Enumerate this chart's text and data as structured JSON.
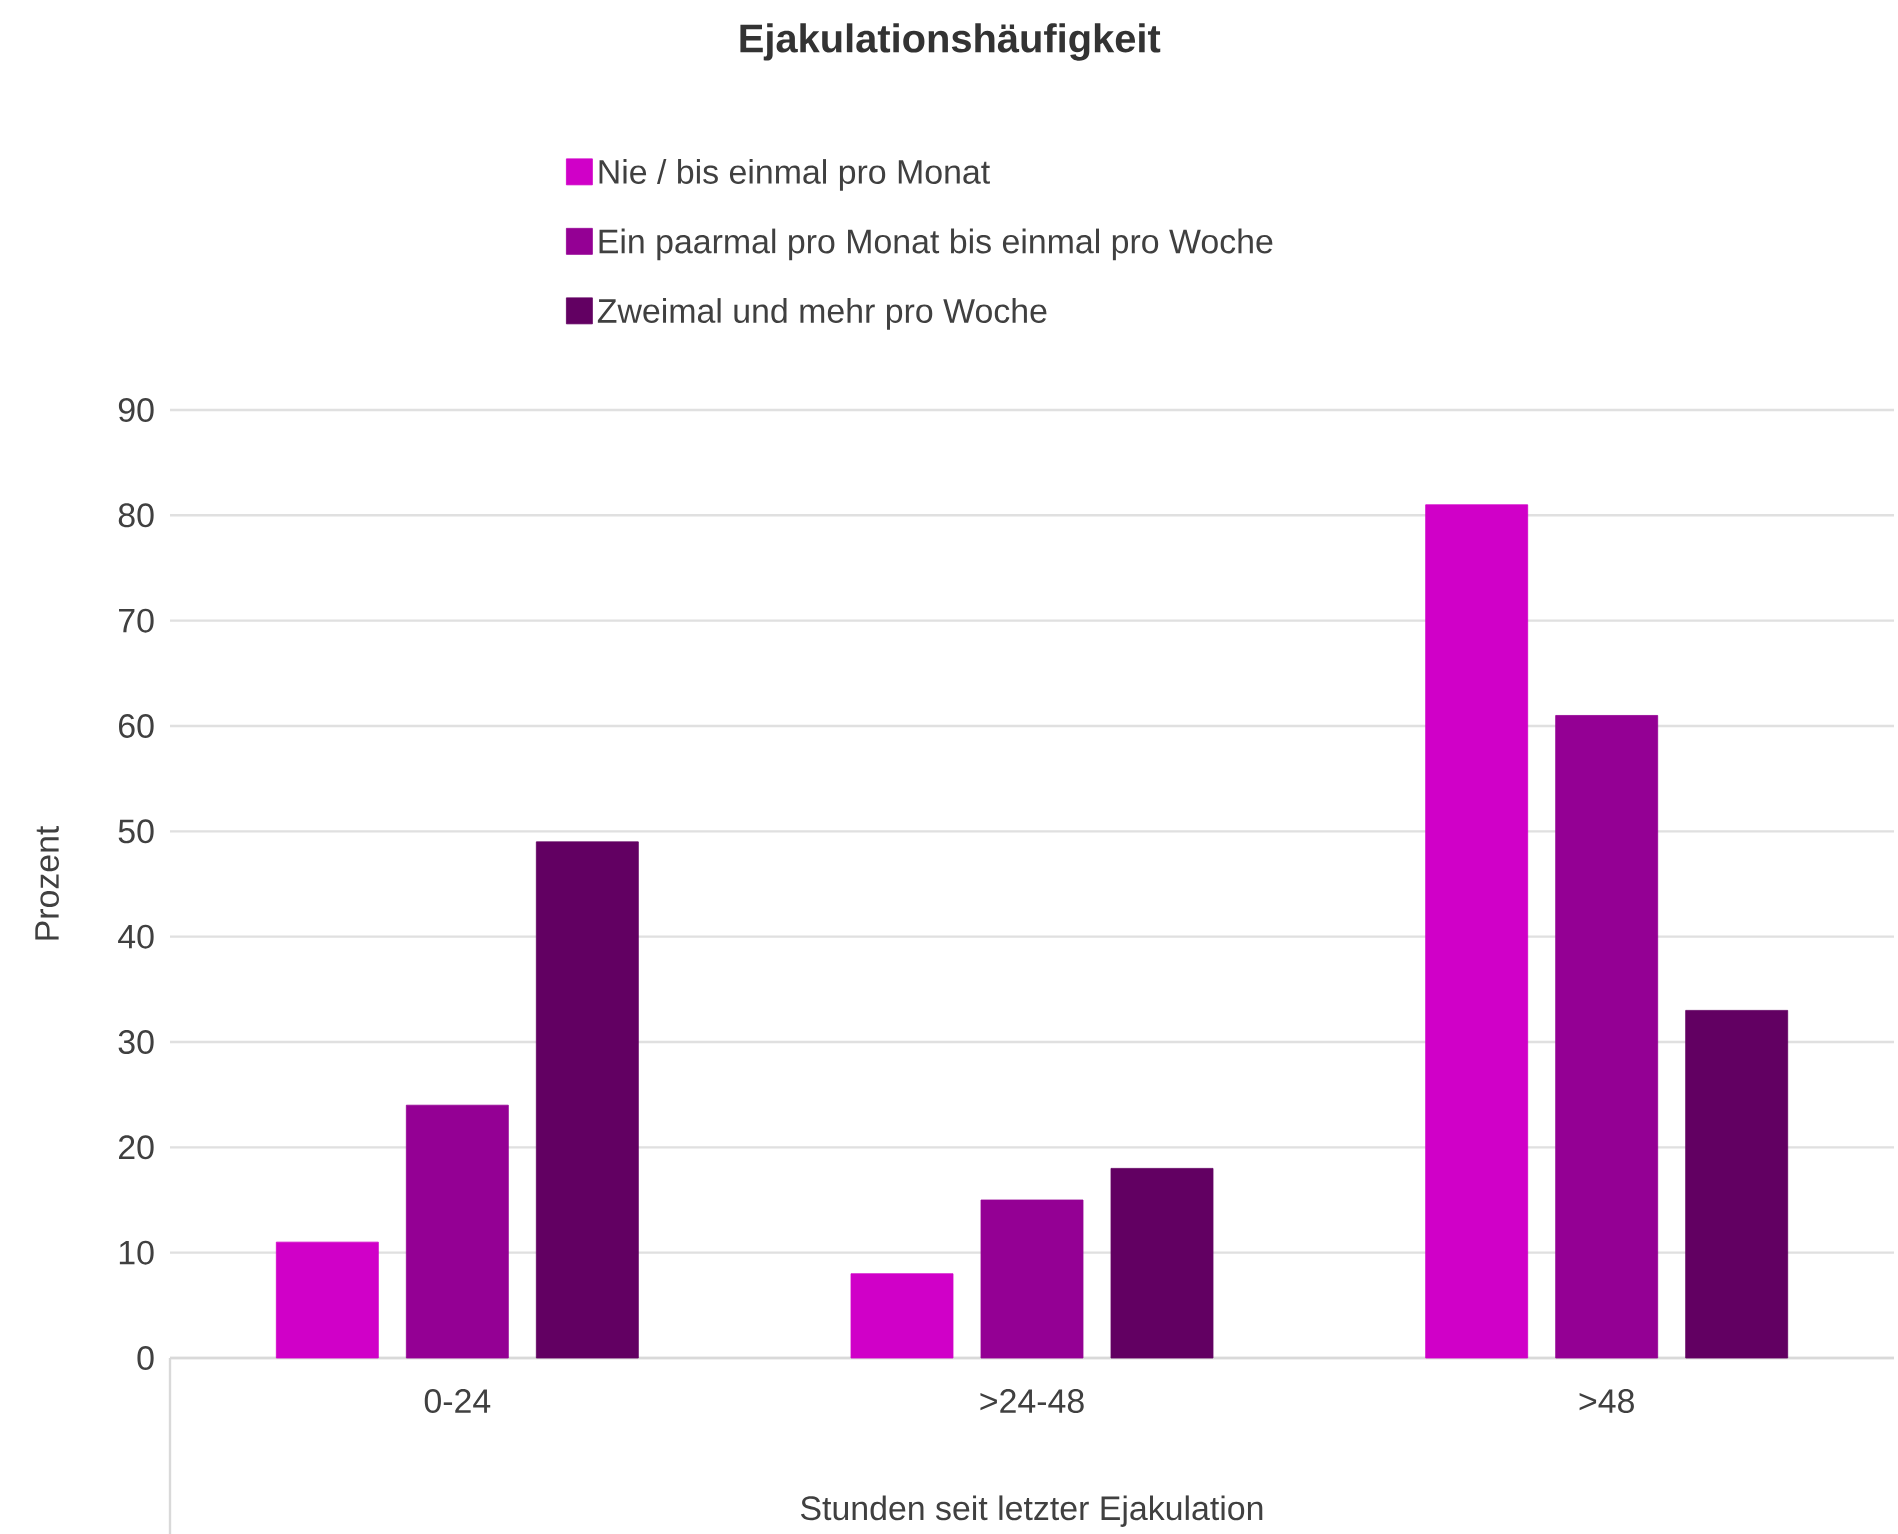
{
  "chart_data": {
    "type": "bar",
    "title": "Ejakulationshäufigkeit",
    "xlabel": "Stunden seit letzter Ejakulation",
    "ylabel": "Prozent",
    "categories": [
      "0-24",
      ">24-48",
      ">48"
    ],
    "series": [
      {
        "name": "Nie / bis einmal pro Monat",
        "color": "#d000c8",
        "values": [
          11,
          8,
          81
        ]
      },
      {
        "name": "Ein paarmal pro Monat bis einmal pro Woche",
        "color": "#940094",
        "values": [
          24,
          15,
          61
        ]
      },
      {
        "name": "Zweimal und mehr pro Woche",
        "color": "#620062",
        "values": [
          49,
          18,
          33
        ]
      }
    ],
    "ylim": [
      0,
      90
    ],
    "yticks": [
      0,
      10,
      20,
      30,
      40,
      50,
      60,
      70,
      80,
      90
    ],
    "grid": "y",
    "legend": "top"
  }
}
